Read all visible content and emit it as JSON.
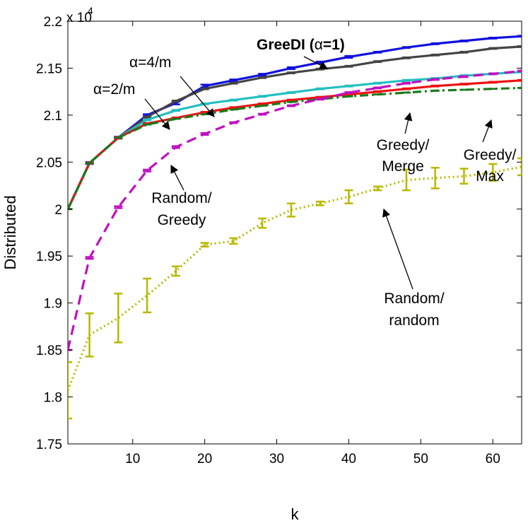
{
  "chart_data": {
    "type": "line",
    "title": "",
    "xlabel": "k",
    "ylabel": "Distributed",
    "xlim": [
      1,
      64
    ],
    "ylim": [
      17500,
      22000
    ],
    "y_multiplier_label": "x 10",
    "y_multiplier_exponent": "4",
    "xticks": [
      10,
      20,
      30,
      40,
      50,
      60
    ],
    "xtick_labels": [
      "10",
      "20",
      "30",
      "40",
      "50",
      "60"
    ],
    "yticks": [
      17500,
      18000,
      18500,
      19000,
      19500,
      20000,
      20500,
      21000,
      21500,
      22000
    ],
    "ytick_labels": [
      "1.75",
      "1.8",
      "1.85",
      "1.9",
      "1.95",
      "2",
      "2.05",
      "2.1",
      "2.15",
      "2.2"
    ],
    "grid": false,
    "legend": "none",
    "x": [
      1,
      4,
      8,
      12,
      16,
      20,
      24,
      28,
      32,
      36,
      40,
      44,
      48,
      52,
      56,
      60,
      64
    ],
    "series": [
      {
        "key": "greedi",
        "color": "#1010e0",
        "dash": "",
        "values": [
          20000,
          20490,
          20760,
          21000,
          21130,
          21310,
          21370,
          21430,
          21500,
          21560,
          21620,
          21670,
          21720,
          21760,
          21790,
          21820,
          21840
        ],
        "err": [
          0,
          10,
          10,
          10,
          15,
          15,
          10,
          10,
          10,
          10,
          10,
          5,
          5,
          5,
          5,
          5,
          5
        ]
      },
      {
        "key": "alpha-4-m",
        "color": "#444444",
        "dash": "",
        "values": [
          20000,
          20490,
          20760,
          20980,
          21150,
          21280,
          21340,
          21400,
          21450,
          21490,
          21520,
          21570,
          21610,
          21640,
          21670,
          21710,
          21730
        ],
        "err": [
          0,
          5,
          5,
          5,
          5,
          5,
          5,
          5,
          5,
          5,
          5,
          5,
          5,
          5,
          5,
          5,
          5
        ]
      },
      {
        "key": "alpha-2-m",
        "color": "#22bfbf",
        "dash": "",
        "values": [
          20000,
          20490,
          20760,
          20950,
          21050,
          21120,
          21160,
          21200,
          21240,
          21280,
          21310,
          21340,
          21370,
          21390,
          21420,
          21440,
          21460
        ],
        "err": [
          0,
          5,
          5,
          5,
          5,
          5,
          5,
          5,
          5,
          5,
          5,
          5,
          5,
          5,
          5,
          5,
          5
        ]
      },
      {
        "key": "greedy-merge",
        "color": "#ee1111",
        "dash": "",
        "values": [
          20000,
          20490,
          20760,
          20910,
          20970,
          21030,
          21080,
          21120,
          21160,
          21190,
          21220,
          21250,
          21280,
          21310,
          21330,
          21350,
          21370
        ],
        "err": [
          0,
          5,
          5,
          5,
          5,
          5,
          5,
          5,
          5,
          5,
          5,
          5,
          5,
          5,
          5,
          5,
          5
        ]
      },
      {
        "key": "greedy-max",
        "color": "#1a7a1a",
        "dash": "12,5,3,5",
        "values": [
          20000,
          20490,
          20760,
          20900,
          20960,
          21010,
          21060,
          21100,
          21140,
          21170,
          21200,
          21220,
          21240,
          21260,
          21270,
          21280,
          21290
        ],
        "err": [
          0,
          0,
          0,
          0,
          0,
          0,
          0,
          0,
          0,
          0,
          0,
          0,
          0,
          0,
          0,
          0,
          0
        ]
      },
      {
        "key": "random-greedy",
        "color": "#c010c0",
        "dash": "14,8",
        "values": [
          18500,
          19480,
          20020,
          20410,
          20660,
          20800,
          20920,
          21010,
          21100,
          21170,
          21240,
          21290,
          21340,
          21380,
          21410,
          21440,
          21470
        ],
        "err": [
          0,
          10,
          10,
          10,
          10,
          10,
          5,
          5,
          5,
          5,
          5,
          5,
          5,
          5,
          5,
          5,
          5
        ]
      },
      {
        "key": "random-random",
        "color": "#b8b800",
        "dash": "2,4",
        "values": [
          18070,
          18660,
          18840,
          19080,
          19340,
          19620,
          19660,
          19850,
          19990,
          20060,
          20130,
          20220,
          20310,
          20330,
          20350,
          20390,
          20450
        ],
        "err": [
          300,
          230,
          260,
          180,
          50,
          20,
          30,
          50,
          70,
          20,
          70,
          20,
          110,
          110,
          80,
          90,
          90
        ]
      }
    ],
    "annotations": [
      {
        "key": "greedi",
        "text": "GreeDI (",
        "alpha": "α",
        "rest": "=1)"
      },
      {
        "key": "alpha-4-m",
        "text": "α=4/m"
      },
      {
        "key": "alpha-2-m",
        "text": "α=2/m"
      },
      {
        "key": "greedy-merge",
        "lines": [
          "Greedy/",
          "Merge"
        ]
      },
      {
        "key": "greedy-max",
        "lines": [
          "Greedy/",
          "Max"
        ]
      },
      {
        "key": "random-greedy",
        "lines": [
          "Random/",
          "Greedy"
        ]
      },
      {
        "key": "random-random",
        "lines": [
          "Random/",
          "random"
        ]
      }
    ]
  }
}
